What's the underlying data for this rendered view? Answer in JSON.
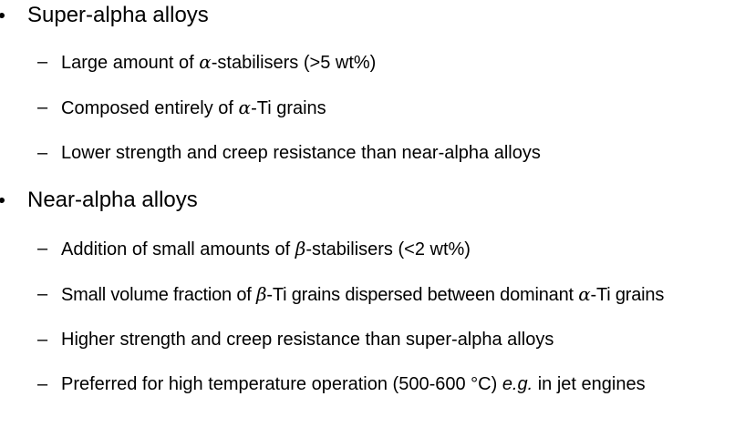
{
  "sections": [
    {
      "heading": "Super-alpha alloys",
      "items": [
        {
          "pre": "Large amount of ",
          "sym": "α",
          "post": "-stabilisers (>5 wt%)"
        },
        {
          "pre": "Composed entirely of ",
          "sym": "α",
          "post": "-Ti grains"
        },
        {
          "text": "Lower strength and creep resistance than near-alpha alloys"
        }
      ]
    },
    {
      "heading": "Near-alpha alloys",
      "items": [
        {
          "pre": "Addition of small amounts of ",
          "sym": "β",
          "post": "-stabilisers (<2 wt%)"
        },
        {
          "pre": "Small volume fraction of ",
          "sym": "β",
          "mid": "-Ti grains dispersed between dominant ",
          "sym2": "α",
          "post": "-Ti grains"
        },
        {
          "text": "Higher strength and creep resistance than super-alpha alloys"
        },
        {
          "pre": "Preferred for high temperature operation (500-600 °C) ",
          "em": "e.g.",
          "post": " in jet engines"
        }
      ]
    }
  ],
  "dash_glyph": "–"
}
